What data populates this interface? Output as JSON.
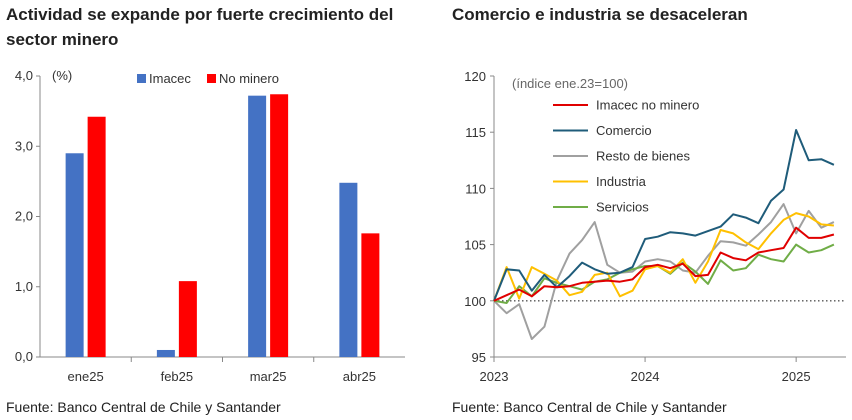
{
  "left_title": "Actividad se expande por fuerte crecimiento del sector minero",
  "right_title": "Comercio e industria se desaceleran",
  "source_left": "Fuente: Banco Central de Chile y Santander",
  "source_right": "Fuente: Banco Central de Chile y Santander",
  "chart_data": [
    {
      "type": "bar",
      "title": "Actividad se expande por fuerte crecimiento del sector minero",
      "unit_label": "(%)",
      "categories": [
        "ene25",
        "feb25",
        "mar25",
        "abr25"
      ],
      "series": [
        {
          "name": "Imacec",
          "color": "#4472C4",
          "values": [
            2.9,
            0.1,
            3.72,
            2.48
          ]
        },
        {
          "name": "No minero",
          "color": "#FF0000",
          "values": [
            3.42,
            1.08,
            3.74,
            1.76
          ]
        }
      ],
      "ylim": [
        0,
        4
      ],
      "yticks": [
        0,
        1,
        2,
        3,
        4
      ],
      "ytick_labels": [
        "0,0",
        "1,0",
        "2,0",
        "3,0",
        "4,0"
      ],
      "legend_position": "top",
      "xlabel": "",
      "ylabel": ""
    },
    {
      "type": "line",
      "title": "Comercio e industria se desaceleran",
      "unit_label": "(índice ene.23=100)",
      "x_start": 2023.0,
      "x_step": 0.0833333,
      "xlim": [
        2023.0,
        2025.33
      ],
      "xticks": [
        2023,
        2024,
        2025
      ],
      "xtick_labels": [
        "2023",
        "2024",
        "2025"
      ],
      "ylim": [
        95,
        120
      ],
      "yticks": [
        95,
        100,
        105,
        110,
        115,
        120
      ],
      "ytick_labels": [
        "95",
        "100",
        "105",
        "110",
        "115",
        "120"
      ],
      "reference_line": 100,
      "legend_position": "top-left",
      "series": [
        {
          "name": "Imacec no minero",
          "color": "#E00000",
          "values": [
            100,
            100.5,
            101.0,
            100.4,
            101.3,
            101.2,
            101.3,
            101.6,
            101.7,
            101.8,
            101.7,
            101.9,
            103.0,
            103.2,
            102.9,
            103.3,
            102.2,
            102.3,
            104.3,
            103.8,
            103.6,
            104.3,
            104.5,
            104.7,
            106.5,
            105.6,
            105.6,
            105.9
          ]
        },
        {
          "name": "Comercio",
          "color": "#1F5C7A",
          "values": [
            100,
            102.8,
            102.7,
            100.9,
            102.3,
            101.2,
            102.2,
            103.4,
            102.8,
            102.4,
            102.5,
            103.0,
            105.5,
            105.7,
            106.1,
            106.0,
            105.8,
            106.2,
            106.6,
            107.7,
            107.4,
            106.9,
            108.9,
            109.9,
            115.2,
            112.5,
            112.6,
            112.1
          ]
        },
        {
          "name": "Resto de bienes",
          "color": "#A0A0A0",
          "values": [
            100,
            98.9,
            99.7,
            96.6,
            97.7,
            101.8,
            104.2,
            105.4,
            107.0,
            103.2,
            102.5,
            102.6,
            103.5,
            103.7,
            103.5,
            102.7,
            102.5,
            104.0,
            105.3,
            105.2,
            104.9,
            105.9,
            107.0,
            108.6,
            106.0,
            108.0,
            106.5,
            107.0
          ]
        },
        {
          "name": "Industria",
          "color": "#FFC000",
          "values": [
            100,
            103.0,
            100.2,
            103.0,
            102.4,
            101.8,
            100.5,
            100.8,
            102.3,
            102.5,
            100.4,
            100.9,
            102.8,
            103.1,
            102.5,
            103.7,
            101.6,
            103.5,
            106.3,
            106.0,
            105.2,
            104.6,
            106.0,
            107.2,
            107.8,
            107.5,
            106.8,
            106.7
          ]
        },
        {
          "name": "Servicios",
          "color": "#70AD47",
          "values": [
            100,
            99.8,
            101.3,
            100.4,
            102.0,
            101.6,
            101.3,
            101.0,
            101.7,
            101.9,
            102.5,
            102.8,
            103.1,
            103.1,
            102.4,
            103.4,
            102.6,
            101.5,
            103.6,
            102.7,
            102.9,
            104.1,
            103.7,
            103.5,
            105.0,
            104.3,
            104.5,
            105.0
          ]
        }
      ],
      "xlabel": "",
      "ylabel": ""
    }
  ]
}
